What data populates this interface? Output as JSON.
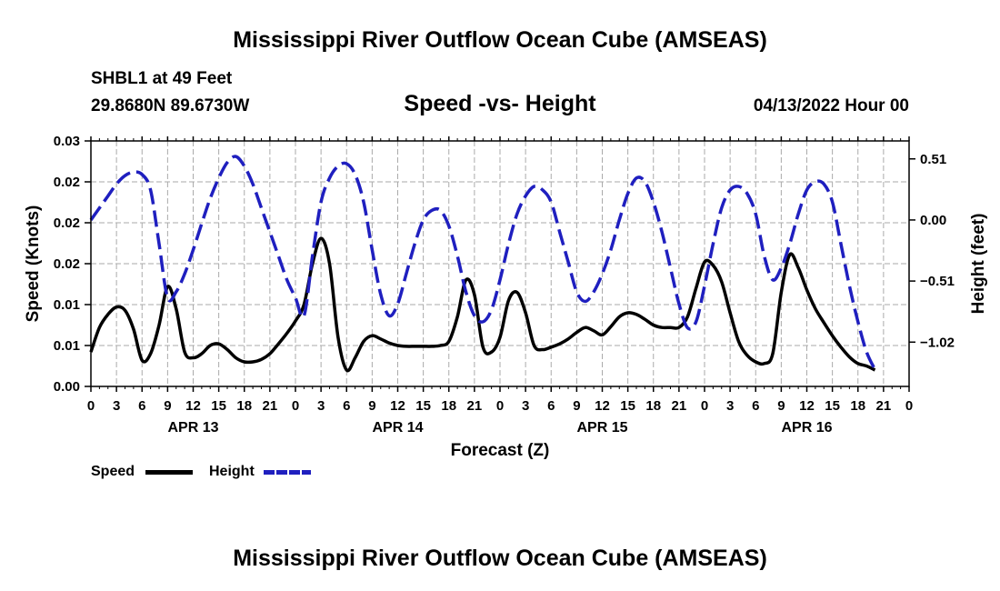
{
  "main_title": "Mississippi River Outflow Ocean Cube (AMSEAS)",
  "footer_title": "Mississippi River Outflow Ocean Cube (AMSEAS)",
  "station": {
    "name_line": "SHBL1 at 49 Feet",
    "coords_line": "29.8680N  89.6730W"
  },
  "timestamp": "04/13/2022 Hour 00",
  "legend": {
    "speed_label": "Speed",
    "height_label": "Height"
  },
  "colors": {
    "speed": "#000000",
    "height": "#1f1fbf",
    "grid": "#aaaaaa"
  },
  "chart_data": {
    "type": "line",
    "title": "Speed -vs- Height",
    "xlabel": "Forecast (Z)",
    "ylabel": "Speed (Knots)",
    "y2label": "Height (feet)",
    "xlim": [
      0,
      96
    ],
    "ylim": [
      0,
      0.03
    ],
    "y2lim": [
      -1.39,
      0.66
    ],
    "x_tick_labels": [
      "0",
      "3",
      "6",
      "9",
      "12",
      "15",
      "18",
      "21",
      "0",
      "3",
      "6",
      "9",
      "12",
      "15",
      "18",
      "21",
      "0",
      "3",
      "6",
      "9",
      "12",
      "15",
      "18",
      "21",
      "0",
      "3",
      "6",
      "9",
      "12",
      "15",
      "18",
      "21",
      "0"
    ],
    "day_labels": [
      {
        "hour": 12,
        "label": "APR 13"
      },
      {
        "hour": 36,
        "label": "APR 14"
      },
      {
        "hour": 60,
        "label": "APR 15"
      },
      {
        "hour": 84,
        "label": "APR 16"
      }
    ],
    "y_ticks": [
      {
        "value": 0.0,
        "label": "0.00"
      },
      {
        "value": 0.005,
        "label": "0.01"
      },
      {
        "value": 0.01,
        "label": "0.01"
      },
      {
        "value": 0.015,
        "label": "0.02"
      },
      {
        "value": 0.02,
        "label": "0.02"
      },
      {
        "value": 0.025,
        "label": "0.02"
      },
      {
        "value": 0.03,
        "label": "0.03"
      }
    ],
    "y2_ticks": [
      {
        "value": 0.51,
        "label": "0.51"
      },
      {
        "value": 0.0,
        "label": "0.00"
      },
      {
        "value": -0.51,
        "label": "−0.51"
      },
      {
        "value": -1.02,
        "label": "−1.02"
      }
    ],
    "series": [
      {
        "name": "Speed",
        "axis": "left",
        "style": "solid",
        "points": [
          [
            0,
            0.0042
          ],
          [
            1,
            0.0072
          ],
          [
            2,
            0.0088
          ],
          [
            3,
            0.0097
          ],
          [
            4,
            0.0093
          ],
          [
            5,
            0.007
          ],
          [
            6,
            0.0032
          ],
          [
            7,
            0.004
          ],
          [
            8,
            0.0075
          ],
          [
            9,
            0.0122
          ],
          [
            10,
            0.0095
          ],
          [
            11,
            0.0042
          ],
          [
            12,
            0.0035
          ],
          [
            13,
            0.004
          ],
          [
            14,
            0.005
          ],
          [
            15,
            0.0052
          ],
          [
            16,
            0.0045
          ],
          [
            17,
            0.0035
          ],
          [
            18,
            0.003
          ],
          [
            19,
            0.003
          ],
          [
            20,
            0.0033
          ],
          [
            21,
            0.004
          ],
          [
            22,
            0.0052
          ],
          [
            23,
            0.0065
          ],
          [
            24,
            0.008
          ],
          [
            25,
            0.01
          ],
          [
            26,
            0.015
          ],
          [
            27,
            0.0181
          ],
          [
            28,
            0.015
          ],
          [
            29,
            0.006
          ],
          [
            30,
            0.002
          ],
          [
            31,
            0.0035
          ],
          [
            32,
            0.0055
          ],
          [
            33,
            0.0062
          ],
          [
            34,
            0.0058
          ],
          [
            35,
            0.0053
          ],
          [
            36,
            0.005
          ],
          [
            37,
            0.0049
          ],
          [
            38,
            0.0049
          ],
          [
            39,
            0.0049
          ],
          [
            40,
            0.0049
          ],
          [
            41,
            0.005
          ],
          [
            42,
            0.0055
          ],
          [
            43,
            0.0085
          ],
          [
            44,
            0.013
          ],
          [
            45,
            0.0112
          ],
          [
            46,
            0.0048
          ],
          [
            47,
            0.0042
          ],
          [
            48,
            0.006
          ],
          [
            49,
            0.0105
          ],
          [
            50,
            0.0115
          ],
          [
            51,
            0.009
          ],
          [
            52,
            0.005
          ],
          [
            53,
            0.0045
          ],
          [
            54,
            0.0048
          ],
          [
            55,
            0.0052
          ],
          [
            56,
            0.0058
          ],
          [
            57,
            0.0066
          ],
          [
            58,
            0.0072
          ],
          [
            59,
            0.0068
          ],
          [
            60,
            0.0063
          ],
          [
            61,
            0.0073
          ],
          [
            62,
            0.0085
          ],
          [
            63,
            0.009
          ],
          [
            64,
            0.0088
          ],
          [
            65,
            0.0082
          ],
          [
            66,
            0.0075
          ],
          [
            67,
            0.0072
          ],
          [
            68,
            0.0072
          ],
          [
            69,
            0.0072
          ],
          [
            70,
            0.0085
          ],
          [
            71,
            0.012
          ],
          [
            72,
            0.0152
          ],
          [
            73,
            0.0148
          ],
          [
            74,
            0.0128
          ],
          [
            75,
            0.009
          ],
          [
            76,
            0.0055
          ],
          [
            77,
            0.0038
          ],
          [
            78,
            0.003
          ],
          [
            79,
            0.0028
          ],
          [
            80,
            0.004
          ],
          [
            81,
            0.0115
          ],
          [
            82,
            0.0161
          ],
          [
            83,
            0.0145
          ],
          [
            84,
            0.0118
          ],
          [
            85,
            0.0095
          ],
          [
            86,
            0.0078
          ],
          [
            87,
            0.0062
          ],
          [
            88,
            0.0048
          ],
          [
            89,
            0.0036
          ],
          [
            90,
            0.0028
          ],
          [
            91,
            0.0025
          ],
          [
            92,
            0.002
          ]
        ]
      },
      {
        "name": "Height",
        "axis": "right",
        "style": "dashed",
        "points": [
          [
            0,
            0.0
          ],
          [
            1,
            0.1
          ],
          [
            2,
            0.2
          ],
          [
            3,
            0.3
          ],
          [
            4,
            0.37
          ],
          [
            5,
            0.4
          ],
          [
            6,
            0.38
          ],
          [
            7,
            0.25
          ],
          [
            8,
            -0.2
          ],
          [
            9,
            -0.65
          ],
          [
            10,
            -0.6
          ],
          [
            11,
            -0.45
          ],
          [
            12,
            -0.25
          ],
          [
            13,
            -0.03
          ],
          [
            14,
            0.18
          ],
          [
            15,
            0.35
          ],
          [
            16,
            0.48
          ],
          [
            17,
            0.53
          ],
          [
            18,
            0.45
          ],
          [
            19,
            0.3
          ],
          [
            20,
            0.1
          ],
          [
            21,
            -0.1
          ],
          [
            22,
            -0.3
          ],
          [
            23,
            -0.5
          ],
          [
            24,
            -0.65
          ],
          [
            25,
            -0.8
          ],
          [
            26,
            -0.3
          ],
          [
            27,
            0.15
          ],
          [
            28,
            0.35
          ],
          [
            29,
            0.45
          ],
          [
            30,
            0.47
          ],
          [
            31,
            0.38
          ],
          [
            32,
            0.15
          ],
          [
            33,
            -0.25
          ],
          [
            34,
            -0.62
          ],
          [
            35,
            -0.8
          ],
          [
            36,
            -0.7
          ],
          [
            37,
            -0.45
          ],
          [
            38,
            -0.2
          ],
          [
            39,
            0.0
          ],
          [
            40,
            0.08
          ],
          [
            41,
            0.08
          ],
          [
            42,
            -0.05
          ],
          [
            43,
            -0.3
          ],
          [
            44,
            -0.6
          ],
          [
            45,
            -0.8
          ],
          [
            46,
            -0.85
          ],
          [
            47,
            -0.75
          ],
          [
            48,
            -0.5
          ],
          [
            49,
            -0.2
          ],
          [
            50,
            0.05
          ],
          [
            51,
            0.2
          ],
          [
            52,
            0.28
          ],
          [
            53,
            0.25
          ],
          [
            54,
            0.15
          ],
          [
            55,
            -0.1
          ],
          [
            56,
            -0.35
          ],
          [
            57,
            -0.6
          ],
          [
            58,
            -0.68
          ],
          [
            59,
            -0.6
          ],
          [
            60,
            -0.45
          ],
          [
            61,
            -0.25
          ],
          [
            62,
            0.0
          ],
          [
            63,
            0.22
          ],
          [
            64,
            0.35
          ],
          [
            65,
            0.32
          ],
          [
            66,
            0.15
          ],
          [
            67,
            -0.1
          ],
          [
            68,
            -0.4
          ],
          [
            69,
            -0.7
          ],
          [
            70,
            -0.9
          ],
          [
            71,
            -0.85
          ],
          [
            72,
            -0.55
          ],
          [
            73,
            -0.2
          ],
          [
            74,
            0.1
          ],
          [
            75,
            0.25
          ],
          [
            76,
            0.28
          ],
          [
            77,
            0.22
          ],
          [
            78,
            0.05
          ],
          [
            79,
            -0.3
          ],
          [
            80,
            -0.5
          ],
          [
            81,
            -0.4
          ],
          [
            82,
            -0.2
          ],
          [
            83,
            0.05
          ],
          [
            84,
            0.25
          ],
          [
            85,
            0.32
          ],
          [
            86,
            0.3
          ],
          [
            87,
            0.15
          ],
          [
            88,
            -0.2
          ],
          [
            89,
            -0.55
          ],
          [
            90,
            -0.85
          ],
          [
            91,
            -1.1
          ],
          [
            92,
            -1.25
          ]
        ]
      }
    ]
  }
}
